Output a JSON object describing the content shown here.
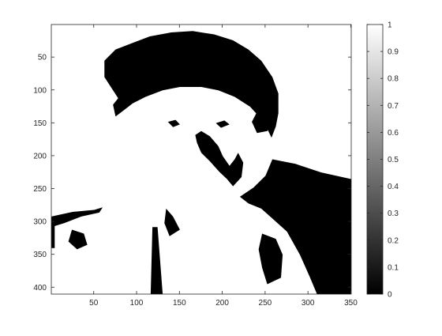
{
  "chart_data": {
    "type": "heatmap",
    "title": "",
    "xlabel": "",
    "ylabel": "",
    "colormap": "gray",
    "binary_image": true,
    "image_width": 350,
    "image_height": 410,
    "xlim": [
      1,
      350
    ],
    "ylim": [
      1,
      410
    ],
    "y_direction": "reverse",
    "x_ticks": [
      50,
      100,
      150,
      200,
      250,
      300,
      350
    ],
    "x_tick_labels": [
      "50",
      "100",
      "150",
      "200",
      "250",
      "300",
      "350"
    ],
    "y_ticks": [
      50,
      100,
      150,
      200,
      250,
      300,
      350,
      400
    ],
    "y_tick_labels": [
      "50",
      "100",
      "150",
      "200",
      "250",
      "300",
      "350",
      "400"
    ],
    "colorbar": {
      "min": 0,
      "max": 1,
      "placement": "right",
      "ticks": [
        0,
        0.1,
        0.2,
        0.3,
        0.4,
        0.5,
        0.6,
        0.7,
        0.8,
        0.9,
        1
      ],
      "tick_labels": [
        "0",
        "0.1",
        "0.2",
        "0.3",
        "0.4",
        "0.5",
        "0.6",
        "0.7",
        "0.8",
        "0.9",
        "1"
      ]
    },
    "regions": [
      {
        "value": 0,
        "polygon": [
          [
            62,
            55
          ],
          [
            75,
            38
          ],
          [
            95,
            28
          ],
          [
            115,
            18
          ],
          [
            140,
            12
          ],
          [
            165,
            10
          ],
          [
            190,
            15
          ],
          [
            212,
            24
          ],
          [
            230,
            38
          ],
          [
            245,
            55
          ],
          [
            258,
            80
          ],
          [
            265,
            105
          ],
          [
            265,
            135
          ],
          [
            262,
            155
          ],
          [
            257,
            172
          ],
          [
            248,
            148
          ],
          [
            232,
            125
          ],
          [
            214,
            110
          ],
          [
            195,
            100
          ],
          [
            175,
            95
          ],
          [
            150,
            95
          ],
          [
            130,
            100
          ],
          [
            110,
            110
          ],
          [
            95,
            120
          ],
          [
            85,
            130
          ],
          [
            75,
            140
          ],
          [
            72,
            122
          ],
          [
            78,
            112
          ],
          [
            72,
            100
          ],
          [
            62,
            80
          ]
        ]
      },
      {
        "value": 0,
        "polygon": [
          [
            242,
            128
          ],
          [
            255,
            135
          ],
          [
            258,
            150
          ],
          [
            252,
            162
          ],
          [
            240,
            165
          ],
          [
            234,
            148
          ]
        ]
      },
      {
        "value": 0,
        "polygon": [
          [
            168,
            168
          ],
          [
            175,
            162
          ],
          [
            185,
            170
          ],
          [
            195,
            185
          ],
          [
            200,
            200
          ],
          [
            208,
            215
          ],
          [
            214,
            205
          ],
          [
            218,
            195
          ],
          [
            224,
            210
          ],
          [
            222,
            232
          ],
          [
            212,
            246
          ],
          [
            205,
            235
          ],
          [
            196,
            224
          ],
          [
            185,
            208
          ],
          [
            175,
            195
          ],
          [
            170,
            180
          ]
        ]
      },
      {
        "value": 0,
        "polygon": [
          [
            258,
            205
          ],
          [
            285,
            212
          ],
          [
            315,
            225
          ],
          [
            350,
            235
          ],
          [
            350,
            410
          ],
          [
            310,
            410
          ],
          [
            302,
            385
          ],
          [
            290,
            350
          ],
          [
            275,
            315
          ],
          [
            258,
            295
          ],
          [
            245,
            280
          ],
          [
            230,
            272
          ],
          [
            220,
            262
          ],
          [
            236,
            248
          ],
          [
            250,
            230
          ]
        ]
      },
      {
        "value": 0,
        "polygon": [
          [
            0,
            292
          ],
          [
            25,
            285
          ],
          [
            50,
            282
          ],
          [
            60,
            278
          ],
          [
            56,
            286
          ],
          [
            35,
            292
          ],
          [
            15,
            302
          ],
          [
            0,
            308
          ]
        ]
      },
      {
        "value": 0,
        "polygon": [
          [
            0,
            300
          ],
          [
            4,
            300
          ],
          [
            4,
            340
          ],
          [
            0,
            340
          ]
        ]
      },
      {
        "value": 0,
        "polygon": [
          [
            118,
            308
          ],
          [
            124,
            308
          ],
          [
            130,
            410
          ],
          [
            116,
            410
          ]
        ]
      },
      {
        "value": 0,
        "polygon": [
          [
            134,
            280
          ],
          [
            142,
            292
          ],
          [
            150,
            312
          ],
          [
            138,
            322
          ],
          [
            132,
            302
          ]
        ]
      },
      {
        "value": 0,
        "polygon": [
          [
            24,
            312
          ],
          [
            38,
            318
          ],
          [
            42,
            335
          ],
          [
            30,
            342
          ],
          [
            20,
            330
          ]
        ]
      },
      {
        "value": 0,
        "polygon": [
          [
            246,
            318
          ],
          [
            262,
            326
          ],
          [
            270,
            350
          ],
          [
            268,
            385
          ],
          [
            252,
            395
          ],
          [
            246,
            370
          ],
          [
            242,
            342
          ]
        ]
      },
      {
        "value": 0,
        "polygon": [
          [
            136,
            148
          ],
          [
            145,
            145
          ],
          [
            150,
            152
          ],
          [
            142,
            156
          ]
        ]
      },
      {
        "value": 0,
        "polygon": [
          [
            192,
            150
          ],
          [
            202,
            146
          ],
          [
            208,
            152
          ],
          [
            198,
            157
          ]
        ]
      }
    ]
  }
}
